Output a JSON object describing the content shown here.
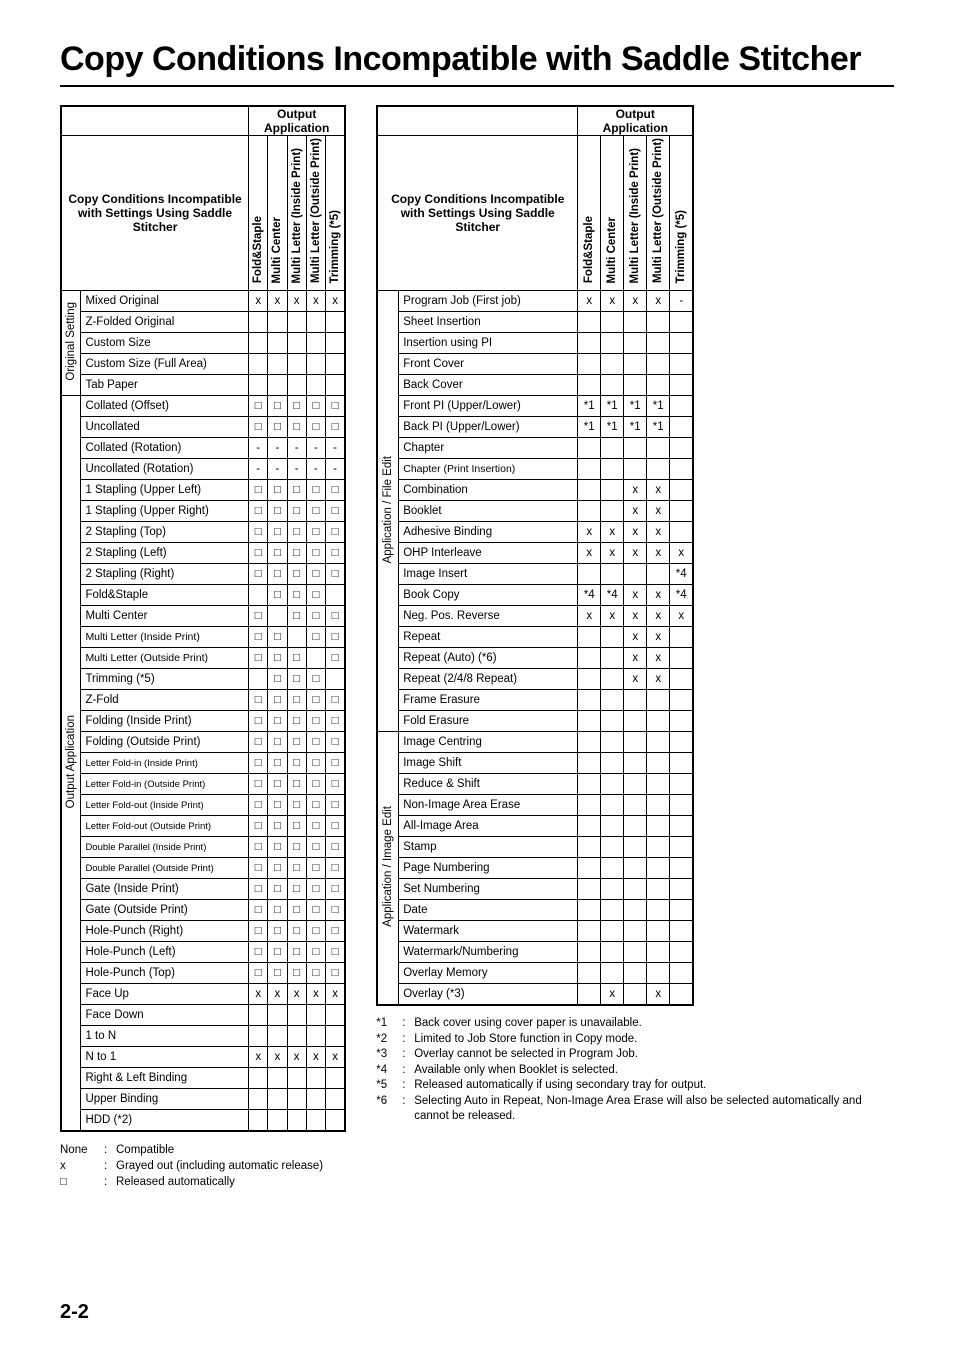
{
  "title": "Copy Conditions Incompatible with Saddle Stitcher",
  "output_app_header": "Output\nApplication",
  "copy_cond_title": "Copy Conditions Incompatible with Settings Using Saddle Stitcher",
  "page_number": "2-2",
  "col_headers": [
    "Fold&Staple",
    "Multi Center",
    "Multi Letter (Inside Print)",
    "Multi Letter (Outside Print)",
    "Trimming (*5)"
  ],
  "marks": {
    "x": "x",
    "sq": "□",
    "dash": "-",
    "s1": "*1",
    "s4": "*4"
  },
  "table1": {
    "side_categories": [
      {
        "label": "Original Setting",
        "rows": [
          "Mixed Original",
          "Z-Folded Original",
          "Custom Size",
          "Custom Size (Full Area)",
          "Tab Paper"
        ]
      },
      {
        "label": "Output Application",
        "rows": [
          "Collated (Offset)",
          "Uncollated",
          "Collated (Rotation)",
          "Uncollated (Rotation)",
          "1 Stapling (Upper Left)",
          "1 Stapling (Upper Right)",
          "2 Stapling (Top)",
          "2 Stapling (Left)",
          "2 Stapling (Right)",
          "Fold&Staple",
          "Multi Center",
          "Multi Letter (Inside Print)",
          "Multi Letter (Outside Print)",
          "Trimming (*5)",
          "Z-Fold",
          "Folding (Inside Print)",
          "Folding (Outside Print)",
          "Letter Fold-in (Inside Print)",
          "Letter Fold-in (Outside Print)",
          "Letter Fold-out (Inside Print)",
          "Letter Fold-out (Outside Print)",
          "Double Parallel (Inside Print)",
          "Double Parallel (Outside Print)",
          "Gate (Inside Print)",
          "Gate (Outside Print)",
          "Hole-Punch (Right)",
          "Hole-Punch (Left)",
          "Hole-Punch (Top)",
          "Face Up",
          "Face Down",
          "1 to N",
          "N to 1",
          "Right & Left Binding",
          "Upper Binding",
          "HDD (*2)"
        ]
      }
    ],
    "data": {
      "Mixed Original": [
        "x",
        "x",
        "x",
        "x",
        "x"
      ],
      "Z-Folded Original": [
        "",
        "",
        "",
        "",
        ""
      ],
      "Custom Size": [
        "",
        "",
        "",
        "",
        ""
      ],
      "Custom Size (Full Area)": [
        "",
        "",
        "",
        "",
        ""
      ],
      "Tab Paper": [
        "",
        "",
        "",
        "",
        ""
      ],
      "Collated (Offset)": [
        "sq",
        "sq",
        "sq",
        "sq",
        "sq"
      ],
      "Uncollated": [
        "sq",
        "sq",
        "sq",
        "sq",
        "sq"
      ],
      "Collated (Rotation)": [
        "dash",
        "dash",
        "dash",
        "dash",
        "dash"
      ],
      "Uncollated (Rotation)": [
        "dash",
        "dash",
        "dash",
        "dash",
        "dash"
      ],
      "1 Stapling (Upper Left)": [
        "sq",
        "sq",
        "sq",
        "sq",
        "sq"
      ],
      "1 Stapling (Upper Right)": [
        "sq",
        "sq",
        "sq",
        "sq",
        "sq"
      ],
      "2 Stapling (Top)": [
        "sq",
        "sq",
        "sq",
        "sq",
        "sq"
      ],
      "2 Stapling (Left)": [
        "sq",
        "sq",
        "sq",
        "sq",
        "sq"
      ],
      "2 Stapling (Right)": [
        "sq",
        "sq",
        "sq",
        "sq",
        "sq"
      ],
      "Fold&Staple": [
        "",
        "sq",
        "sq",
        "sq",
        ""
      ],
      "Multi Center": [
        "sq",
        "",
        "sq",
        "sq",
        "sq"
      ],
      "Multi Letter (Inside Print)": [
        "sq",
        "sq",
        "",
        "sq",
        "sq"
      ],
      "Multi Letter (Outside Print)": [
        "sq",
        "sq",
        "sq",
        "",
        "sq"
      ],
      "Trimming (*5)": [
        "",
        "sq",
        "sq",
        "sq",
        ""
      ],
      "Z-Fold": [
        "sq",
        "sq",
        "sq",
        "sq",
        "sq"
      ],
      "Folding (Inside Print)": [
        "sq",
        "sq",
        "sq",
        "sq",
        "sq"
      ],
      "Folding (Outside Print)": [
        "sq",
        "sq",
        "sq",
        "sq",
        "sq"
      ],
      "Letter Fold-in (Inside Print)": [
        "sq",
        "sq",
        "sq",
        "sq",
        "sq"
      ],
      "Letter Fold-in (Outside Print)": [
        "sq",
        "sq",
        "sq",
        "sq",
        "sq"
      ],
      "Letter Fold-out (Inside Print)": [
        "sq",
        "sq",
        "sq",
        "sq",
        "sq"
      ],
      "Letter Fold-out (Outside Print)": [
        "sq",
        "sq",
        "sq",
        "sq",
        "sq"
      ],
      "Double Parallel (Inside Print)": [
        "sq",
        "sq",
        "sq",
        "sq",
        "sq"
      ],
      "Double Parallel (Outside Print)": [
        "sq",
        "sq",
        "sq",
        "sq",
        "sq"
      ],
      "Gate (Inside Print)": [
        "sq",
        "sq",
        "sq",
        "sq",
        "sq"
      ],
      "Gate (Outside Print)": [
        "sq",
        "sq",
        "sq",
        "sq",
        "sq"
      ],
      "Hole-Punch (Right)": [
        "sq",
        "sq",
        "sq",
        "sq",
        "sq"
      ],
      "Hole-Punch (Left)": [
        "sq",
        "sq",
        "sq",
        "sq",
        "sq"
      ],
      "Hole-Punch (Top)": [
        "sq",
        "sq",
        "sq",
        "sq",
        "sq"
      ],
      "Face Up": [
        "x",
        "x",
        "x",
        "x",
        "x"
      ],
      "Face Down": [
        "",
        "",
        "",
        "",
        ""
      ],
      "1 to N": [
        "",
        "",
        "",
        "",
        ""
      ],
      "N to 1": [
        "x",
        "x",
        "x",
        "x",
        "x"
      ],
      "Right & Left Binding": [
        "",
        "",
        "",
        "",
        ""
      ],
      "Upper Binding": [
        "",
        "",
        "",
        "",
        ""
      ],
      "HDD (*2)": [
        "",
        "",
        "",
        "",
        ""
      ]
    }
  },
  "table2": {
    "side_categories": [
      {
        "label": "Application / File Edit",
        "rows": [
          "Program Job (First job)",
          "Sheet Insertion",
          "Insertion using PI",
          "Front Cover",
          "Back Cover",
          "Front PI (Upper/Lower)",
          "Back PI (Upper/Lower)",
          "Chapter",
          "Chapter (Print Insertion)",
          "Combination",
          "Booklet",
          "Adhesive Binding",
          "OHP Interleave",
          "Image Insert",
          "Book Copy",
          "Neg. Pos. Reverse",
          "Repeat",
          "Repeat (Auto) (*6)",
          "Repeat (2/4/8 Repeat)",
          "Frame Erasure",
          "Fold Erasure"
        ]
      },
      {
        "label": "Application / Image Edit",
        "rows": [
          "Image Centring",
          "Image Shift",
          "Reduce & Shift",
          "Non-Image Area Erase",
          "All-Image Area",
          "Stamp",
          "Page Numbering",
          "Set Numbering",
          "Date",
          "Watermark",
          "Watermark/Numbering",
          "Overlay Memory",
          "Overlay (*3)"
        ]
      }
    ],
    "data": {
      "Program Job (First job)": [
        "x",
        "x",
        "x",
        "x",
        "dash"
      ],
      "Sheet Insertion": [
        "",
        "",
        "",
        "",
        ""
      ],
      "Insertion using PI": [
        "",
        "",
        "",
        "",
        ""
      ],
      "Front Cover": [
        "",
        "",
        "",
        "",
        ""
      ],
      "Back Cover": [
        "",
        "",
        "",
        "",
        ""
      ],
      "Front PI (Upper/Lower)": [
        "s1",
        "s1",
        "s1",
        "s1",
        ""
      ],
      "Back PI (Upper/Lower)": [
        "s1",
        "s1",
        "s1",
        "s1",
        ""
      ],
      "Chapter": [
        "",
        "",
        "",
        "",
        ""
      ],
      "Chapter (Print Insertion)": [
        "",
        "",
        "",
        "",
        ""
      ],
      "Combination": [
        "",
        "",
        "x",
        "x",
        ""
      ],
      "Booklet": [
        "",
        "",
        "x",
        "x",
        ""
      ],
      "Adhesive Binding": [
        "x",
        "x",
        "x",
        "x",
        ""
      ],
      "OHP Interleave": [
        "x",
        "x",
        "x",
        "x",
        "x"
      ],
      "Image Insert": [
        "",
        "",
        "",
        "",
        "s4"
      ],
      "Book Copy": [
        "s4",
        "s4",
        "x",
        "x",
        "s4"
      ],
      "Neg. Pos. Reverse": [
        "x",
        "x",
        "x",
        "x",
        "x"
      ],
      "Repeat": [
        "",
        "",
        "x",
        "x",
        ""
      ],
      "Repeat (Auto) (*6)": [
        "",
        "",
        "x",
        "x",
        ""
      ],
      "Repeat (2/4/8 Repeat)": [
        "",
        "",
        "x",
        "x",
        ""
      ],
      "Frame Erasure": [
        "",
        "",
        "",
        "",
        ""
      ],
      "Fold Erasure": [
        "",
        "",
        "",
        "",
        ""
      ],
      "Image Centring": [
        "",
        "",
        "",
        "",
        ""
      ],
      "Image Shift": [
        "",
        "",
        "",
        "",
        ""
      ],
      "Reduce & Shift": [
        "",
        "",
        "",
        "",
        ""
      ],
      "Non-Image Area Erase": [
        "",
        "",
        "",
        "",
        ""
      ],
      "All-Image Area": [
        "",
        "",
        "",
        "",
        ""
      ],
      "Stamp": [
        "",
        "",
        "",
        "",
        ""
      ],
      "Page Numbering": [
        "",
        "",
        "",
        "",
        ""
      ],
      "Set Numbering": [
        "",
        "",
        "",
        "",
        ""
      ],
      "Date": [
        "",
        "",
        "",
        "",
        ""
      ],
      "Watermark": [
        "",
        "",
        "",
        "",
        ""
      ],
      "Watermark/Numbering": [
        "",
        "",
        "",
        "",
        ""
      ],
      "Overlay Memory": [
        "",
        "",
        "",
        "",
        ""
      ],
      "Overlay (*3)": [
        "",
        "x",
        "",
        "x",
        ""
      ]
    }
  },
  "footnotes": [
    {
      "k": "*1",
      "t": "Back cover using cover paper is unavailable."
    },
    {
      "k": "*2",
      "t": "Limited to Job Store function in Copy mode."
    },
    {
      "k": "*3",
      "t": "Overlay cannot be selected in Program Job."
    },
    {
      "k": "*4",
      "t": "Available only when Booklet is selected."
    },
    {
      "k": "*5",
      "t": "Released automatically if using secondary tray for output."
    },
    {
      "k": "*6",
      "t": "Selecting Auto in Repeat, Non-Image Area Erase will also be selected automatically and cannot be released."
    }
  ],
  "legend": [
    {
      "k": "None",
      "t": "Compatible"
    },
    {
      "k": "x",
      "t": "Grayed out (including automatic release)"
    },
    {
      "k": "□",
      "t": "Released automatically"
    }
  ]
}
